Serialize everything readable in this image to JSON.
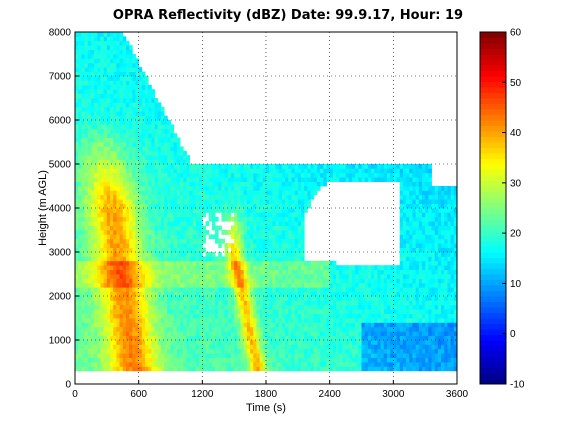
{
  "chart_data": {
    "type": "heatmap",
    "title": "OPRA Reflectivity (dBZ)  Date: 99.9.17, Hour: 19",
    "xlabel": "Time (s)",
    "ylabel": "Height (m AGL)",
    "xlim": [
      0,
      3600
    ],
    "ylim": [
      0,
      8000
    ],
    "xticks": [
      "0",
      "600",
      "1200",
      "1800",
      "2400",
      "3000",
      "3600"
    ],
    "yticks": [
      "0",
      "1000",
      "2000",
      "3000",
      "4000",
      "5000",
      "6000",
      "7000",
      "8000"
    ],
    "grid": true,
    "colorbar": {
      "ticks": [
        "-10",
        "0",
        "10",
        "20",
        "30",
        "40",
        "50",
        "60"
      ],
      "range": [
        -10,
        60
      ],
      "colormap": "jet"
    },
    "features": [
      {
        "name": "main-rainband",
        "dBZ": 42,
        "time_at_bottom": 580,
        "time_at_top": 180,
        "height_range": [
          300,
          6500
        ]
      },
      {
        "name": "second-band",
        "dBZ": 44,
        "time_at_bottom": 1750,
        "time_at_top": 1500,
        "height_range": [
          300,
          3000
        ]
      },
      {
        "name": "bright-band",
        "dBZ": 30,
        "height": 2500
      }
    ]
  }
}
